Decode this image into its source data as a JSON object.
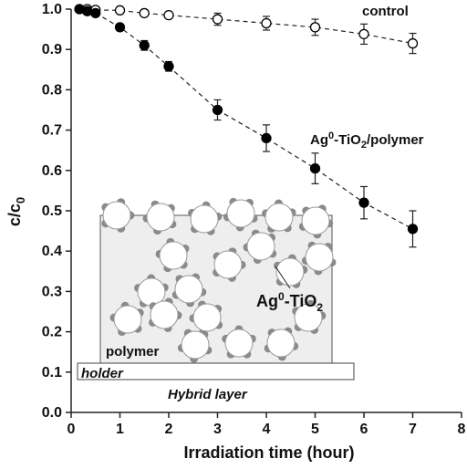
{
  "chart_data": {
    "type": "scatter",
    "xlabel": "Irradiation time (hour)",
    "ylabel": "c/c0",
    "xlim": [
      0,
      8
    ],
    "ylim": [
      0,
      1.0
    ],
    "x_ticks": [
      "0",
      "1",
      "2",
      "3",
      "4",
      "5",
      "6",
      "7",
      "8"
    ],
    "y_ticks": [
      "0.0",
      "0.1",
      "0.2",
      "0.3",
      "0.4",
      "0.5",
      "0.6",
      "0.7",
      "0.8",
      "0.9",
      "1.0"
    ],
    "grid": false,
    "series": [
      {
        "name": "control",
        "marker": "open-circle",
        "line": "dashed",
        "x": [
          0.17,
          0.33,
          0.5,
          1,
          1.5,
          2,
          3,
          4,
          5,
          6,
          7
        ],
        "y": [
          1.0,
          1.0,
          0.998,
          0.997,
          0.99,
          0.985,
          0.975,
          0.965,
          0.955,
          0.938,
          0.915
        ],
        "err": [
          0,
          0,
          0,
          0,
          0,
          0,
          0.015,
          0.017,
          0.02,
          0.025,
          0.025
        ]
      },
      {
        "name": "Ag0-TiO2/polymer",
        "marker": "filled-circle",
        "line": "dashed",
        "x": [
          0.17,
          0.33,
          0.5,
          1,
          1.5,
          2,
          3,
          4,
          5,
          6,
          7
        ],
        "y": [
          1.0,
          0.995,
          0.99,
          0.955,
          0.91,
          0.858,
          0.75,
          0.68,
          0.605,
          0.52,
          0.455
        ],
        "err": [
          0,
          0,
          0,
          0,
          0.012,
          0.012,
          0.025,
          0.033,
          0.038,
          0.04,
          0.045
        ]
      }
    ],
    "annotations": {
      "control_prefix": "control",
      "series2_a": "Ag",
      "series2_sup": "0",
      "series2_b": "-TiO",
      "series2_sub": "2",
      "series2_c": "/polymer",
      "inset_a": "Ag",
      "inset_sup": "0",
      "inset_b": "-TiO",
      "inset_sub": "2",
      "polymer": "polymer",
      "holder": "holder",
      "hybrid": "Hybrid layer"
    },
    "ylabel_parts": {
      "main": "c/c",
      "sub": "0"
    }
  }
}
